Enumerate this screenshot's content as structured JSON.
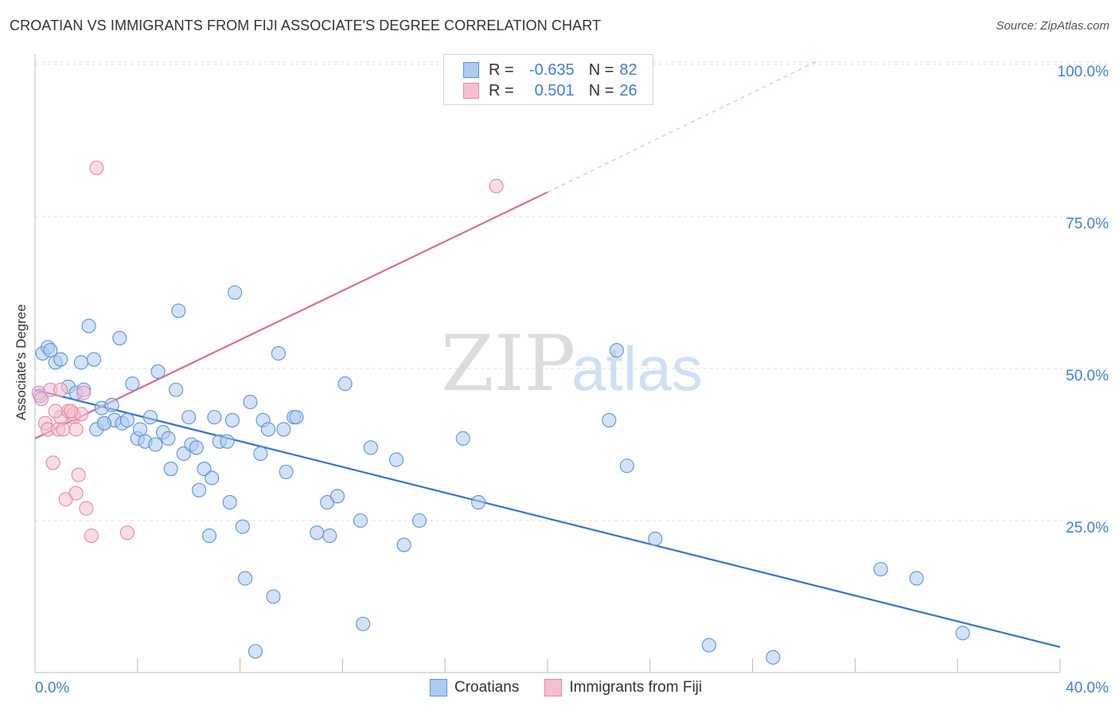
{
  "header": {
    "title": "CROATIAN VS IMMIGRANTS FROM FIJI ASSOCIATE'S DEGREE CORRELATION CHART",
    "source": "Source: ZipAtlas.com"
  },
  "watermark": {
    "zip": "ZIP",
    "atlas": "atlas"
  },
  "colors": {
    "blue_fill": "#aecbf2",
    "blue_stroke": "#5b93d9",
    "blue_line": "#3573d2",
    "pink_fill": "#f6bfcf",
    "pink_stroke": "#e08aa4",
    "pink_line": "#de6a92",
    "axis_text": "#3f7fd6"
  },
  "stats": [
    {
      "r_label": "R =",
      "r": "-0.635",
      "n_label": "N =",
      "n": "82"
    },
    {
      "r_label": "R =",
      "r": "0.501",
      "n_label": "N =",
      "n": "26"
    }
  ],
  "legend": [
    {
      "label": "Croatians"
    },
    {
      "label": "Immigrants from Fiji"
    }
  ],
  "chart_data": {
    "type": "scatter",
    "title": "CROATIAN VS IMMIGRANTS FROM FIJI ASSOCIATE'S DEGREE CORRELATION CHART",
    "xlabel": "",
    "ylabel": "Associate's Degree",
    "xlim": [
      0,
      40
    ],
    "ylim": [
      0,
      102
    ],
    "x_tick_labels": [
      {
        "value": 0,
        "label": "0.0%"
      },
      {
        "value": 40,
        "label": "40.0%"
      }
    ],
    "x_minor_ticks": [
      0,
      4,
      8,
      12,
      16,
      20,
      24,
      28,
      32,
      36,
      40
    ],
    "y_ticks": [
      {
        "value": 25,
        "label": "25.0%"
      },
      {
        "value": 50,
        "label": "50.0%"
      },
      {
        "value": 75,
        "label": "75.0%"
      },
      {
        "value": 100,
        "label": "100.0%"
      }
    ],
    "grid": "horizontal dashed",
    "series": [
      {
        "name": "Croatians",
        "color": "#5b93d9",
        "trend": {
          "x0": 0,
          "y0": 46.5,
          "x1": 40,
          "y1": 4.2
        },
        "points": [
          {
            "x": 0.2,
            "y": 45.5
          },
          {
            "x": 0.3,
            "y": 52.5
          },
          {
            "x": 0.5,
            "y": 53.5
          },
          {
            "x": 0.6,
            "y": 53
          },
          {
            "x": 0.8,
            "y": 51
          },
          {
            "x": 1.0,
            "y": 51.5
          },
          {
            "x": 1.3,
            "y": 47
          },
          {
            "x": 1.6,
            "y": 46
          },
          {
            "x": 1.8,
            "y": 51
          },
          {
            "x": 1.9,
            "y": 46.5
          },
          {
            "x": 2.1,
            "y": 57
          },
          {
            "x": 2.3,
            "y": 51.5
          },
          {
            "x": 2.4,
            "y": 40
          },
          {
            "x": 2.6,
            "y": 43.5
          },
          {
            "x": 2.7,
            "y": 41
          },
          {
            "x": 3.0,
            "y": 44
          },
          {
            "x": 3.1,
            "y": 41.5
          },
          {
            "x": 3.3,
            "y": 55
          },
          {
            "x": 3.4,
            "y": 41
          },
          {
            "x": 3.6,
            "y": 41.5
          },
          {
            "x": 3.8,
            "y": 47.5
          },
          {
            "x": 4.0,
            "y": 38.5
          },
          {
            "x": 4.1,
            "y": 40
          },
          {
            "x": 4.3,
            "y": 38
          },
          {
            "x": 4.5,
            "y": 42
          },
          {
            "x": 4.7,
            "y": 37.5
          },
          {
            "x": 4.8,
            "y": 49.5
          },
          {
            "x": 5.0,
            "y": 39.5
          },
          {
            "x": 5.2,
            "y": 38.5
          },
          {
            "x": 5.3,
            "y": 33.5
          },
          {
            "x": 5.5,
            "y": 46.5
          },
          {
            "x": 5.6,
            "y": 59.5
          },
          {
            "x": 5.8,
            "y": 36
          },
          {
            "x": 6.0,
            "y": 42
          },
          {
            "x": 6.1,
            "y": 37.5
          },
          {
            "x": 6.3,
            "y": 37
          },
          {
            "x": 6.4,
            "y": 30
          },
          {
            "x": 6.6,
            "y": 33.5
          },
          {
            "x": 6.8,
            "y": 22.5
          },
          {
            "x": 6.9,
            "y": 32
          },
          {
            "x": 7.0,
            "y": 42
          },
          {
            "x": 7.2,
            "y": 38
          },
          {
            "x": 7.5,
            "y": 38
          },
          {
            "x": 7.6,
            "y": 28
          },
          {
            "x": 7.7,
            "y": 41.5
          },
          {
            "x": 7.8,
            "y": 62.5
          },
          {
            "x": 8.1,
            "y": 24
          },
          {
            "x": 8.2,
            "y": 15.5
          },
          {
            "x": 8.4,
            "y": 44.5
          },
          {
            "x": 8.6,
            "y": 3.5
          },
          {
            "x": 8.8,
            "y": 36
          },
          {
            "x": 8.9,
            "y": 41.5
          },
          {
            "x": 9.1,
            "y": 40
          },
          {
            "x": 9.3,
            "y": 12.5
          },
          {
            "x": 9.5,
            "y": 52.5
          },
          {
            "x": 9.7,
            "y": 40
          },
          {
            "x": 9.8,
            "y": 33
          },
          {
            "x": 10.1,
            "y": 42
          },
          {
            "x": 11.0,
            "y": 23
          },
          {
            "x": 11.4,
            "y": 28
          },
          {
            "x": 11.5,
            "y": 22.5
          },
          {
            "x": 11.8,
            "y": 29
          },
          {
            "x": 12.1,
            "y": 47.5
          },
          {
            "x": 12.7,
            "y": 25
          },
          {
            "x": 12.8,
            "y": 8
          },
          {
            "x": 13.1,
            "y": 37
          },
          {
            "x": 14.1,
            "y": 35
          },
          {
            "x": 14.4,
            "y": 21
          },
          {
            "x": 15.0,
            "y": 25
          },
          {
            "x": 16.7,
            "y": 38.5
          },
          {
            "x": 17.3,
            "y": 28
          },
          {
            "x": 22.4,
            "y": 41.5
          },
          {
            "x": 22.7,
            "y": 53
          },
          {
            "x": 23.1,
            "y": 34
          },
          {
            "x": 24.2,
            "y": 22
          },
          {
            "x": 26.3,
            "y": 4.5
          },
          {
            "x": 28.8,
            "y": 2.5
          },
          {
            "x": 33.0,
            "y": 17
          },
          {
            "x": 34.4,
            "y": 15.5
          },
          {
            "x": 36.2,
            "y": 6.5
          },
          {
            "x": 2.7,
            "y": 41
          },
          {
            "x": 10.2,
            "y": 42
          }
        ]
      },
      {
        "name": "Immigrants from Fiji",
        "color": "#e08aa4",
        "trend": {
          "x0": 0,
          "y0": 38.5,
          "x1": 20,
          "y1": 79.0,
          "dashed_to": {
            "x": 30.5,
            "y": 100.5
          }
        },
        "points": [
          {
            "x": 0.15,
            "y": 46
          },
          {
            "x": 0.25,
            "y": 45
          },
          {
            "x": 0.4,
            "y": 41
          },
          {
            "x": 0.5,
            "y": 40
          },
          {
            "x": 0.6,
            "y": 46.5
          },
          {
            "x": 0.7,
            "y": 34.5
          },
          {
            "x": 0.9,
            "y": 40
          },
          {
            "x": 1.0,
            "y": 46.5
          },
          {
            "x": 1.0,
            "y": 42
          },
          {
            "x": 1.1,
            "y": 40
          },
          {
            "x": 1.2,
            "y": 28.5
          },
          {
            "x": 1.3,
            "y": 43
          },
          {
            "x": 1.5,
            "y": 42
          },
          {
            "x": 1.5,
            "y": 42.5
          },
          {
            "x": 1.6,
            "y": 40
          },
          {
            "x": 1.6,
            "y": 29.5
          },
          {
            "x": 1.7,
            "y": 32.5
          },
          {
            "x": 1.8,
            "y": 42.5
          },
          {
            "x": 1.9,
            "y": 46
          },
          {
            "x": 2.0,
            "y": 27
          },
          {
            "x": 2.2,
            "y": 22.5
          },
          {
            "x": 2.4,
            "y": 83
          },
          {
            "x": 3.6,
            "y": 23
          },
          {
            "x": 18.0,
            "y": 80
          },
          {
            "x": 0.8,
            "y": 43
          },
          {
            "x": 1.4,
            "y": 43
          }
        ]
      }
    ]
  }
}
